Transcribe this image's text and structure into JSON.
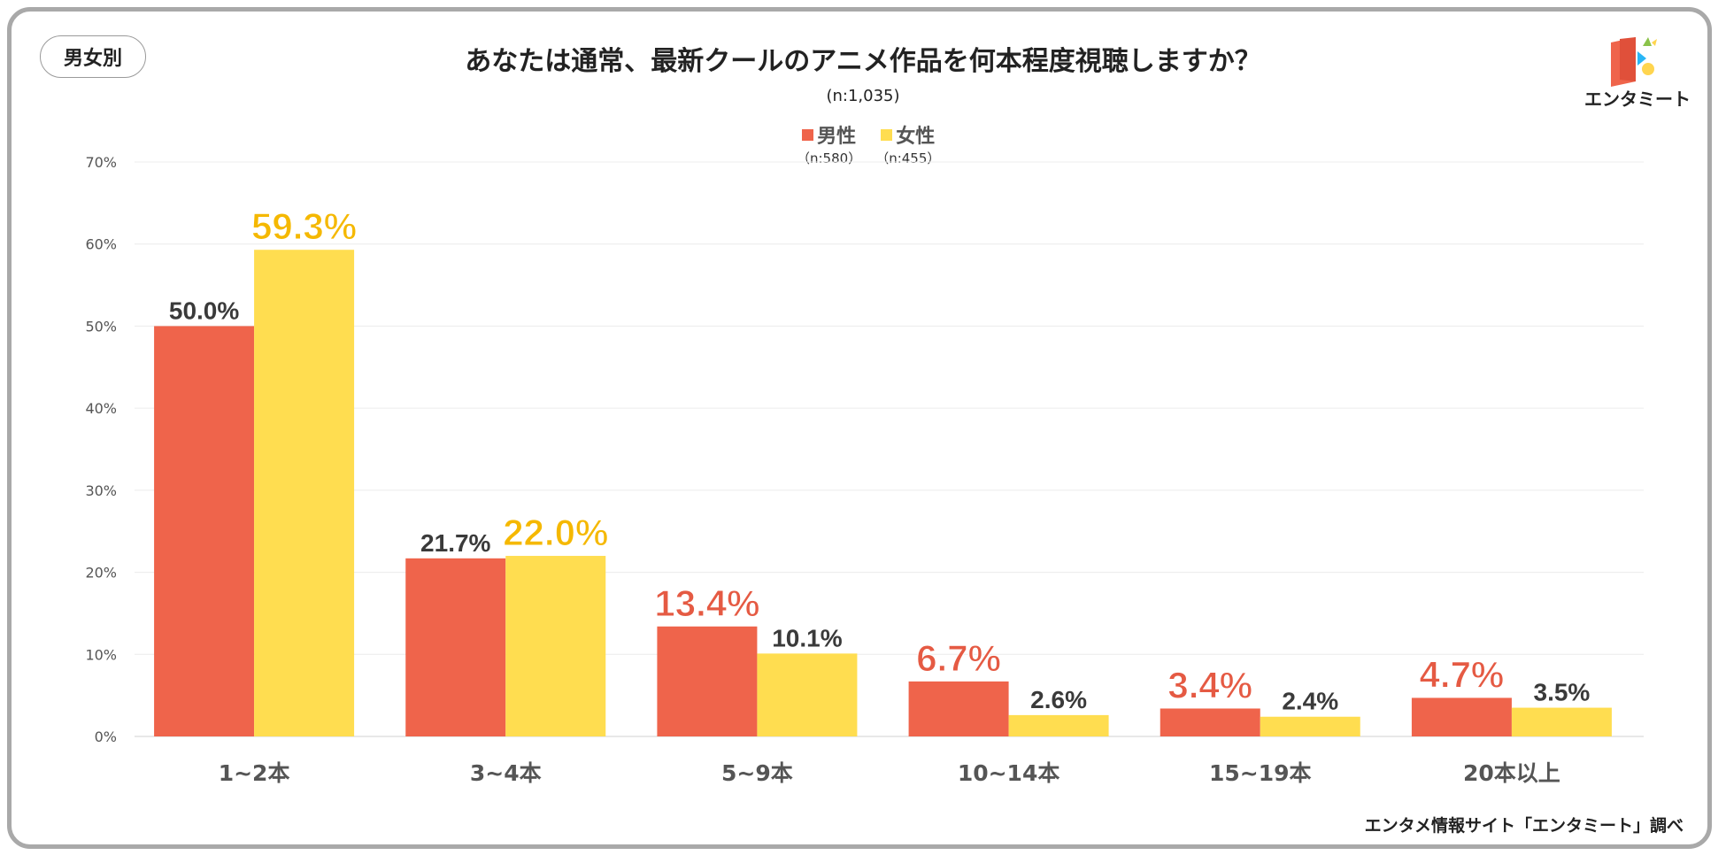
{
  "tag_label": "男女別",
  "title": "あなたは通常、最新クールのアニメ作品を何本程度視聴しますか？",
  "sample_size": "(n:1,035)",
  "legend": [
    {
      "name": "男性",
      "n": "（n:580）",
      "color": "#ef644b"
    },
    {
      "name": "女性",
      "n": "（n:455）",
      "color": "#ffdd50"
    }
  ],
  "logo_text": "エンタミート",
  "source": "エンタメ情報サイト「エンタミート」調べ",
  "chart_data": {
    "type": "bar",
    "title": "あなたは通常、最新クールのアニメ作品を何本程度視聴しますか？",
    "xlabel": "",
    "ylabel": "",
    "ylim": [
      0,
      70
    ],
    "y_ticks": [
      "0%",
      "10%",
      "20%",
      "30%",
      "40%",
      "50%",
      "60%",
      "70%"
    ],
    "categories": [
      "1~2本",
      "3~4本",
      "5~9本",
      "10~14本",
      "15~19本",
      "20本以上"
    ],
    "series": [
      {
        "name": "男性",
        "color": "#ef644b",
        "values": [
          50.0,
          21.7,
          13.4,
          6.7,
          3.4,
          4.7
        ],
        "labels": [
          "50.0%",
          "21.7%",
          "13.4%",
          "6.7%",
          "3.4%",
          "4.7%"
        ],
        "highlight": [
          false,
          false,
          true,
          true,
          true,
          true
        ]
      },
      {
        "name": "女性",
        "color": "#ffdd50",
        "values": [
          59.3,
          22.0,
          10.1,
          2.6,
          2.4,
          3.5
        ],
        "labels": [
          "59.3%",
          "22.0%",
          "10.1%",
          "2.6%",
          "2.4%",
          "3.5%"
        ],
        "highlight": [
          true,
          true,
          false,
          false,
          false,
          false
        ]
      }
    ],
    "highlight_colors": {
      "男性": "#e55a43",
      "女性": "#f5b800"
    },
    "grid": true
  }
}
